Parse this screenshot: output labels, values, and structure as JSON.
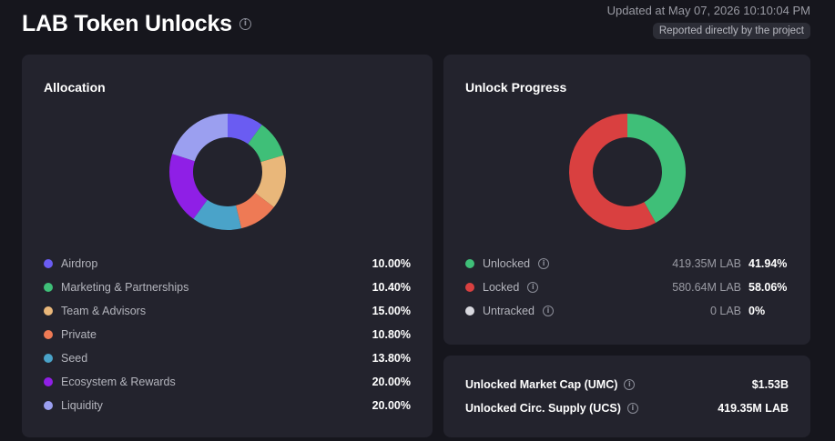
{
  "header": {
    "title": "LAB Token Unlocks",
    "updated": "Updated at May 07, 2026 10:10:04 PM",
    "badge": "Reported directly by the project"
  },
  "allocation": {
    "title": "Allocation",
    "items": [
      {
        "label": "Airdrop",
        "pct": "10.00%",
        "value": 10.0,
        "color": "#6a5cf2"
      },
      {
        "label": "Marketing & Partnerships",
        "pct": "10.40%",
        "value": 10.4,
        "color": "#3fbf78"
      },
      {
        "label": "Team & Advisors",
        "pct": "15.00%",
        "value": 15.0,
        "color": "#e9b77a"
      },
      {
        "label": "Private",
        "pct": "10.80%",
        "value": 10.8,
        "color": "#ee7a55"
      },
      {
        "label": "Seed",
        "pct": "13.80%",
        "value": 13.8,
        "color": "#4aa3c9"
      },
      {
        "label": "Ecosystem & Rewards",
        "pct": "20.00%",
        "value": 20.0,
        "color": "#8f1fe6"
      },
      {
        "label": "Liquidity",
        "pct": "20.00%",
        "value": 20.0,
        "color": "#9b9ff0"
      }
    ]
  },
  "unlock": {
    "title": "Unlock Progress",
    "items": [
      {
        "label": "Unlocked",
        "amount": "419.35M LAB",
        "pct": "41.94%",
        "value": 41.94,
        "color": "#3fbf78"
      },
      {
        "label": "Locked",
        "amount": "580.64M LAB",
        "pct": "58.06%",
        "value": 58.06,
        "color": "#d94040"
      },
      {
        "label": "Untracked",
        "amount": "0 LAB",
        "pct": "0%",
        "value": 0,
        "color": "#d8d8de"
      }
    ]
  },
  "stats": {
    "umc_label": "Unlocked Market Cap (UMC)",
    "umc_value": "$1.53B",
    "ucs_label": "Unlocked Circ. Supply (UCS)",
    "ucs_value": "419.35M LAB"
  },
  "icons": {
    "info": "info-icon"
  }
}
